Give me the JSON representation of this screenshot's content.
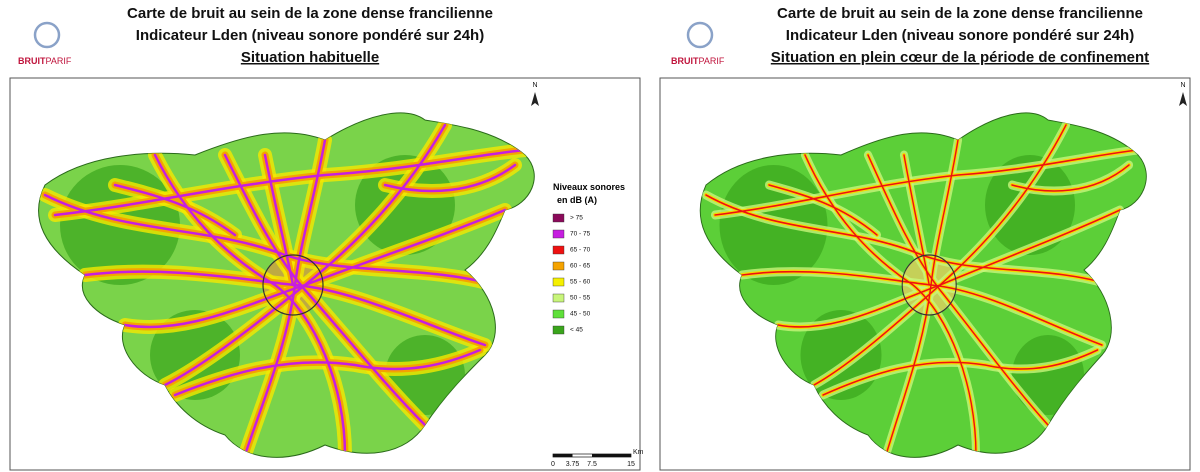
{
  "panels": [
    {
      "logo": {
        "part1": "BRUIT",
        "part2": "PARIF"
      },
      "title": [
        "Carte de bruit au sein de la zone dense francilienne",
        "Indicateur Lden (niveau sonore pondéré sur 24h)",
        "Situation habituelle"
      ],
      "north": "N"
    },
    {
      "logo": {
        "part1": "BRUIT",
        "part2": "PARIF"
      },
      "title": [
        "Carte de bruit au sein de la zone dense francilienne",
        "Indicateur Lden (niveau sonore pondéré sur 24h)",
        "Situation en plein cœur de la période de confinement"
      ],
      "north": "N"
    }
  ],
  "legend": {
    "title": [
      "Niveaux sonores",
      "en dB (A)"
    ],
    "items": [
      {
        "label": "> 75",
        "color": "#8b0a5a"
      },
      {
        "label": "70 - 75",
        "color": "#c61ee0"
      },
      {
        "label": "65 - 70",
        "color": "#ee1111"
      },
      {
        "label": "60 - 65",
        "color": "#f5a300"
      },
      {
        "label": "55 - 60",
        "color": "#f5f000"
      },
      {
        "label": "50 - 55",
        "color": "#c8f57a"
      },
      {
        "label": "45 - 50",
        "color": "#5fe03a"
      },
      {
        "label": "< 45",
        "color": "#3aa51c"
      }
    ]
  },
  "scale_bar": {
    "labels": [
      "0",
      "3.75",
      "7.5",
      "15"
    ],
    "unit": "Km"
  }
}
